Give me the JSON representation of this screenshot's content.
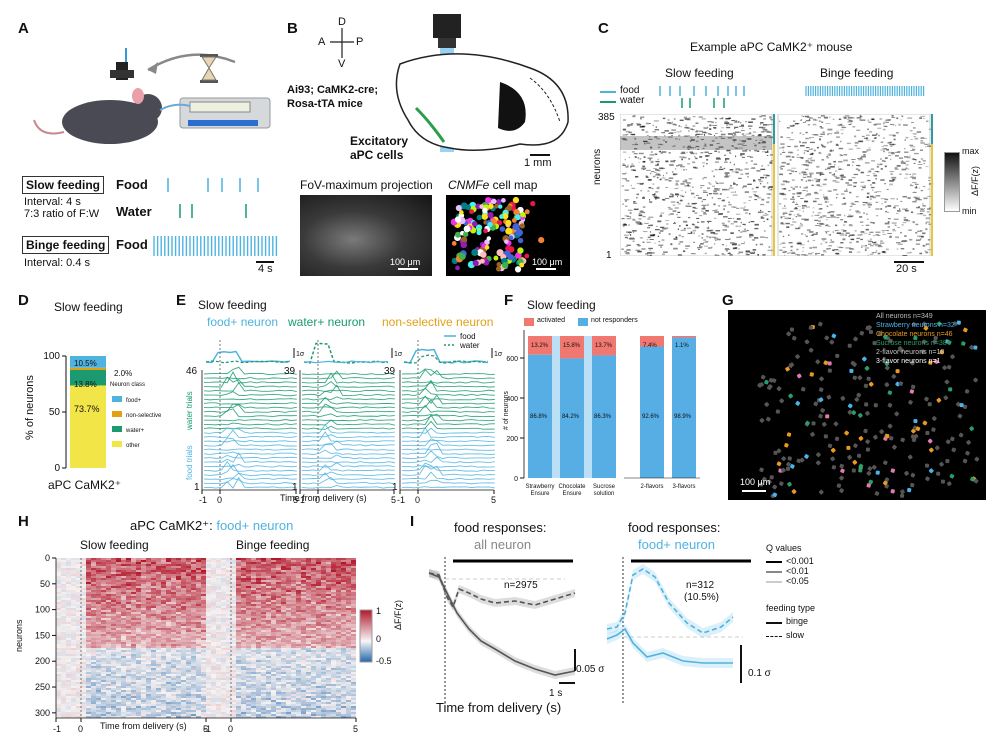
{
  "letters": [
    "A",
    "B",
    "C",
    "D",
    "E",
    "F",
    "G",
    "H",
    "I"
  ],
  "A": {
    "slow_label": "Slow feeding",
    "food": "Food",
    "water": "Water",
    "interval_slow": "Interval: 4 s",
    "ratio": "7:3 ratio of F:W",
    "binge_label": "Binge feeding",
    "food2": "Food",
    "interval_binge": "Interval: 0.4 s",
    "scale": "4 s"
  },
  "B": {
    "compass_d": "D",
    "compass_v": "V",
    "compass_a": "A",
    "compass_p": "P",
    "mice": [
      "Ai93; CaMK2-cre;",
      "Rosa-tTA mice"
    ],
    "cells": [
      "Excitatory",
      "aPC cells"
    ],
    "scale": "1 mm",
    "fov_title": "FoV-maximum projection",
    "cnmf_title_italic": "CNMFe",
    "cnmf_title_rest": " cell map",
    "scale_um": "100 μm",
    "scale_um2": "100 μm"
  },
  "C": {
    "title": "Example aPC CaMK2⁺ mouse",
    "slow": "Slow feeding",
    "binge": "Binge feeding",
    "legend_food": "food",
    "legend_water": "water",
    "y_top": "385",
    "y_bottom": "1",
    "ylabel": "neurons",
    "scale": "20 s",
    "cbar_max": "max",
    "cbar_min": "min",
    "cbar_label": "ΔF/F(z)"
  },
  "D": {
    "title": "Slow feeding",
    "ylabel": "% of neurons",
    "yticks": [
      "0",
      "50",
      "100"
    ],
    "xlabel": "aPC CaMK2⁺",
    "legend_title": "Neuron class",
    "legend": [
      "food+",
      "non-selective",
      "water+",
      "other"
    ],
    "pct_food": "10.5%",
    "pct_nonsel": "2.0%",
    "pct_water": "13.8%",
    "pct_other": "73.7%"
  },
  "E": {
    "title": "Slow feeding",
    "headers": [
      "food+ neuron",
      "water+ neuron",
      "non-selective neuron"
    ],
    "n_labels": [
      "46",
      "39",
      "39"
    ],
    "one_label": "1",
    "scale_sigma": "1σ",
    "legend": [
      "food",
      "water"
    ],
    "food_trials": "food trials",
    "water_trials": "water trials",
    "xticks": [
      "-1",
      "0",
      "5"
    ],
    "xlabel": "Time from delivery (s)"
  },
  "F": {
    "title": "Slow feeding",
    "legend_activated": "activated",
    "legend_not": "not responders",
    "ylabel": "# of neurons",
    "yticks": [
      "0",
      "200",
      "400",
      "600"
    ],
    "categories": [
      "Strawberry Ensure",
      "Chocolate Ensure",
      "Sucrose solution",
      "2-flavors",
      "3-flavors"
    ],
    "top_pct": [
      "13.2%",
      "15.8%",
      "13.7%",
      "7.4%",
      "1.1%"
    ],
    "bot_pct": [
      "86.8%",
      "84.2%",
      "86.3%",
      "92.6%",
      "98.9%"
    ]
  },
  "G": {
    "legend": [
      "All neurons n=349",
      "Strawberry neurons n=32",
      "Chocolate neurons n=46",
      "Sucrose neurons n=38",
      "2-flavor neurons n=18",
      "3-flavor neurons n=1"
    ],
    "scale": "100 μm"
  },
  "H": {
    "title_prefix": "aPC CaMK2⁺: ",
    "title_colored": "food+ neuron",
    "slow": "Slow feeding",
    "binge": "Binge feeding",
    "ylabel": "neurons",
    "yticks": [
      "0",
      "50",
      "100",
      "150",
      "200",
      "250",
      "300"
    ],
    "xticks": [
      "-1",
      "0",
      "5"
    ],
    "xticks2": [
      "-1",
      "0",
      "5"
    ],
    "xlabel": "Time from delivery (s)",
    "cbar_ticks": [
      "1",
      "0",
      "-0.5"
    ],
    "cbar_label": "ΔF/F(z)"
  },
  "I": {
    "title1": "food responses:",
    "sub1": "all neuron",
    "title2": "food responses:",
    "sub2": "food+ neuron",
    "n1": "n=2975",
    "n2": "n=312",
    "n2b": "(10.5%)",
    "scale1": "0.05 σ",
    "scale2": "0.1 σ",
    "scale_t": "1 s",
    "xlabel": "Time from delivery (s)",
    "q_title": "Q values",
    "q": [
      "<0.001",
      "<0.01",
      "<0.05"
    ],
    "ft_title": "feeding type",
    "ft": [
      "binge",
      "slow"
    ]
  },
  "colors": {
    "food": "#4fb3e0",
    "water": "#1a9a6e",
    "nonsel": "#e0a215",
    "other": "#f2e547",
    "activated": "#f07870",
    "notresp": "#56aee4",
    "strawberry": "#4ab3ea",
    "chocolate": "#e89a20",
    "sucrose": "#2a9e6a",
    "twoflavor": "#c5c5c5"
  }
}
